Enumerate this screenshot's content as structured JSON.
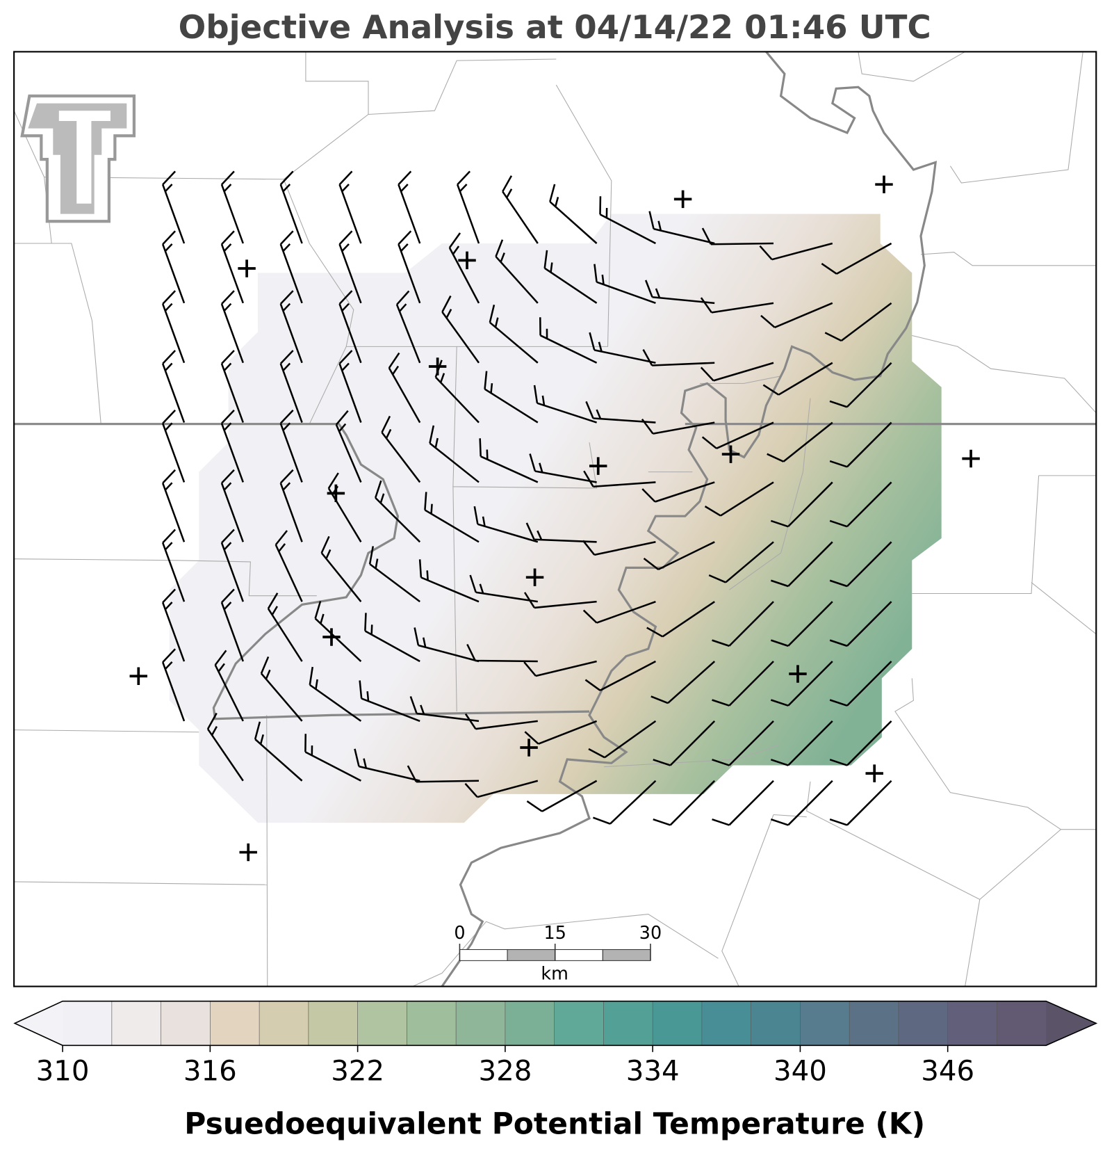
{
  "title": "Objective Analysis at 04/14/22 01:46 UTC",
  "map": {
    "scale_bar": {
      "ticks": [
        0,
        15,
        30
      ],
      "unit": "km"
    }
  },
  "colorbar": {
    "lim": [
      310,
      350
    ],
    "ticks": [
      310,
      316,
      322,
      328,
      334,
      340,
      346
    ],
    "colors": [
      "#f1f0f4",
      "#efebeb",
      "#e9e1dd",
      "#e3d4bf",
      "#d5cdb0",
      "#c4c8a5",
      "#b0c4a2",
      "#9fbe9c",
      "#8fb698",
      "#7bb096",
      "#60a897",
      "#53a096",
      "#4a9896",
      "#478e96",
      "#4c8592",
      "#577c8e",
      "#5b7186",
      "#5e6880",
      "#615f79",
      "#625a72"
    ],
    "under_color": "#f3f2f6",
    "over_color": "#5b5468",
    "label": "Psuedoequivalent Potential Temperature (K)"
  }
}
